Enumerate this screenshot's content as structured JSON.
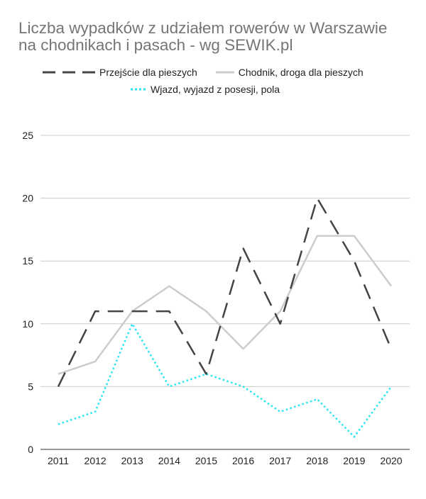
{
  "chart_data": {
    "type": "line",
    "title_lines": [
      "Liczba wypadków z udziałem rowerów w Warszawie",
      "na chodnikach i pasach - wg SEWIK.pl"
    ],
    "categories": [
      "2011",
      "2012",
      "2013",
      "2014",
      "2015",
      "2016",
      "2017",
      "2018",
      "2019",
      "2020"
    ],
    "ylim": [
      0,
      25
    ],
    "yticks": [
      0,
      5,
      10,
      15,
      20,
      25
    ],
    "grid": true,
    "legend_position": "top",
    "series": [
      {
        "name": "Przejście dla pieszych",
        "values": [
          5,
          11,
          11,
          11,
          6,
          16,
          10,
          20,
          15,
          8
        ],
        "color": "#444444",
        "style": "dashed"
      },
      {
        "name": "Chodnik, droga dla pieszych",
        "values": [
          6,
          7,
          11,
          13,
          11,
          8,
          11,
          17,
          17,
          13
        ],
        "color": "#cccccc",
        "style": "solid"
      },
      {
        "name": "Wjazd, wyjazd z posesji, pola",
        "values": [
          2,
          3,
          10,
          5,
          6,
          5,
          3,
          4,
          1,
          5
        ],
        "color": "#27e6f0",
        "style": "dotted"
      }
    ]
  }
}
